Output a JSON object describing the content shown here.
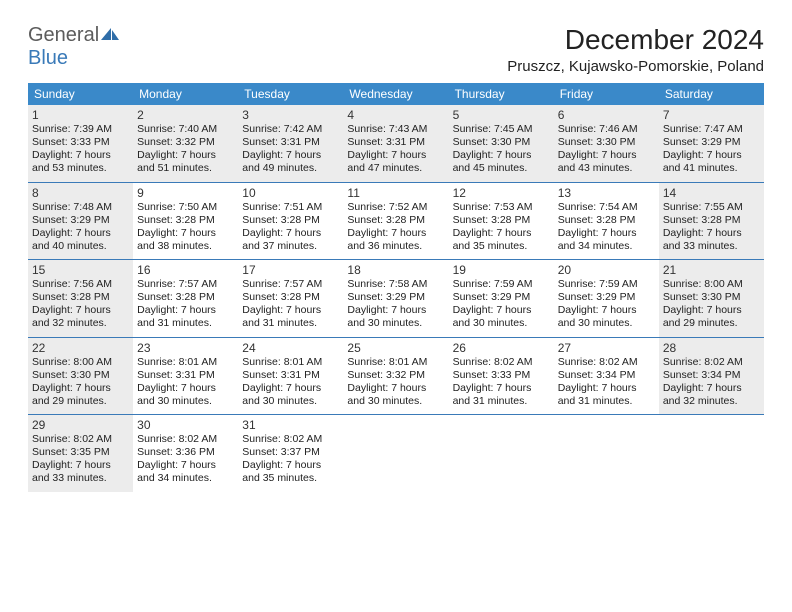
{
  "logo": {
    "text1": "General",
    "text2": "Blue"
  },
  "title": "December 2024",
  "location": "Pruszcz, Kujawsko-Pomorskie, Poland",
  "header_bg": "#3a89c9",
  "border_color": "#3a7ab8",
  "shade_color": "#ececec",
  "weekdays": [
    "Sunday",
    "Monday",
    "Tuesday",
    "Wednesday",
    "Thursday",
    "Friday",
    "Saturday"
  ],
  "weeks": [
    [
      {
        "n": "1",
        "shaded": true,
        "sr": "Sunrise: 7:39 AM",
        "ss": "Sunset: 3:33 PM",
        "dl": "Daylight: 7 hours and 53 minutes."
      },
      {
        "n": "2",
        "shaded": true,
        "sr": "Sunrise: 7:40 AM",
        "ss": "Sunset: 3:32 PM",
        "dl": "Daylight: 7 hours and 51 minutes."
      },
      {
        "n": "3",
        "shaded": true,
        "sr": "Sunrise: 7:42 AM",
        "ss": "Sunset: 3:31 PM",
        "dl": "Daylight: 7 hours and 49 minutes."
      },
      {
        "n": "4",
        "shaded": true,
        "sr": "Sunrise: 7:43 AM",
        "ss": "Sunset: 3:31 PM",
        "dl": "Daylight: 7 hours and 47 minutes."
      },
      {
        "n": "5",
        "shaded": true,
        "sr": "Sunrise: 7:45 AM",
        "ss": "Sunset: 3:30 PM",
        "dl": "Daylight: 7 hours and 45 minutes."
      },
      {
        "n": "6",
        "shaded": true,
        "sr": "Sunrise: 7:46 AM",
        "ss": "Sunset: 3:30 PM",
        "dl": "Daylight: 7 hours and 43 minutes."
      },
      {
        "n": "7",
        "shaded": true,
        "sr": "Sunrise: 7:47 AM",
        "ss": "Sunset: 3:29 PM",
        "dl": "Daylight: 7 hours and 41 minutes."
      }
    ],
    [
      {
        "n": "8",
        "shaded": true,
        "sr": "Sunrise: 7:48 AM",
        "ss": "Sunset: 3:29 PM",
        "dl": "Daylight: 7 hours and 40 minutes."
      },
      {
        "n": "9",
        "shaded": false,
        "sr": "Sunrise: 7:50 AM",
        "ss": "Sunset: 3:28 PM",
        "dl": "Daylight: 7 hours and 38 minutes."
      },
      {
        "n": "10",
        "shaded": false,
        "sr": "Sunrise: 7:51 AM",
        "ss": "Sunset: 3:28 PM",
        "dl": "Daylight: 7 hours and 37 minutes."
      },
      {
        "n": "11",
        "shaded": false,
        "sr": "Sunrise: 7:52 AM",
        "ss": "Sunset: 3:28 PM",
        "dl": "Daylight: 7 hours and 36 minutes."
      },
      {
        "n": "12",
        "shaded": false,
        "sr": "Sunrise: 7:53 AM",
        "ss": "Sunset: 3:28 PM",
        "dl": "Daylight: 7 hours and 35 minutes."
      },
      {
        "n": "13",
        "shaded": false,
        "sr": "Sunrise: 7:54 AM",
        "ss": "Sunset: 3:28 PM",
        "dl": "Daylight: 7 hours and 34 minutes."
      },
      {
        "n": "14",
        "shaded": true,
        "sr": "Sunrise: 7:55 AM",
        "ss": "Sunset: 3:28 PM",
        "dl": "Daylight: 7 hours and 33 minutes."
      }
    ],
    [
      {
        "n": "15",
        "shaded": true,
        "sr": "Sunrise: 7:56 AM",
        "ss": "Sunset: 3:28 PM",
        "dl": "Daylight: 7 hours and 32 minutes."
      },
      {
        "n": "16",
        "shaded": false,
        "sr": "Sunrise: 7:57 AM",
        "ss": "Sunset: 3:28 PM",
        "dl": "Daylight: 7 hours and 31 minutes."
      },
      {
        "n": "17",
        "shaded": false,
        "sr": "Sunrise: 7:57 AM",
        "ss": "Sunset: 3:28 PM",
        "dl": "Daylight: 7 hours and 31 minutes."
      },
      {
        "n": "18",
        "shaded": false,
        "sr": "Sunrise: 7:58 AM",
        "ss": "Sunset: 3:29 PM",
        "dl": "Daylight: 7 hours and 30 minutes."
      },
      {
        "n": "19",
        "shaded": false,
        "sr": "Sunrise: 7:59 AM",
        "ss": "Sunset: 3:29 PM",
        "dl": "Daylight: 7 hours and 30 minutes."
      },
      {
        "n": "20",
        "shaded": false,
        "sr": "Sunrise: 7:59 AM",
        "ss": "Sunset: 3:29 PM",
        "dl": "Daylight: 7 hours and 30 minutes."
      },
      {
        "n": "21",
        "shaded": true,
        "sr": "Sunrise: 8:00 AM",
        "ss": "Sunset: 3:30 PM",
        "dl": "Daylight: 7 hours and 29 minutes."
      }
    ],
    [
      {
        "n": "22",
        "shaded": true,
        "sr": "Sunrise: 8:00 AM",
        "ss": "Sunset: 3:30 PM",
        "dl": "Daylight: 7 hours and 29 minutes."
      },
      {
        "n": "23",
        "shaded": false,
        "sr": "Sunrise: 8:01 AM",
        "ss": "Sunset: 3:31 PM",
        "dl": "Daylight: 7 hours and 30 minutes."
      },
      {
        "n": "24",
        "shaded": false,
        "sr": "Sunrise: 8:01 AM",
        "ss": "Sunset: 3:31 PM",
        "dl": "Daylight: 7 hours and 30 minutes."
      },
      {
        "n": "25",
        "shaded": false,
        "sr": "Sunrise: 8:01 AM",
        "ss": "Sunset: 3:32 PM",
        "dl": "Daylight: 7 hours and 30 minutes."
      },
      {
        "n": "26",
        "shaded": false,
        "sr": "Sunrise: 8:02 AM",
        "ss": "Sunset: 3:33 PM",
        "dl": "Daylight: 7 hours and 31 minutes."
      },
      {
        "n": "27",
        "shaded": false,
        "sr": "Sunrise: 8:02 AM",
        "ss": "Sunset: 3:34 PM",
        "dl": "Daylight: 7 hours and 31 minutes."
      },
      {
        "n": "28",
        "shaded": true,
        "sr": "Sunrise: 8:02 AM",
        "ss": "Sunset: 3:34 PM",
        "dl": "Daylight: 7 hours and 32 minutes."
      }
    ],
    [
      {
        "n": "29",
        "shaded": true,
        "sr": "Sunrise: 8:02 AM",
        "ss": "Sunset: 3:35 PM",
        "dl": "Daylight: 7 hours and 33 minutes."
      },
      {
        "n": "30",
        "shaded": false,
        "sr": "Sunrise: 8:02 AM",
        "ss": "Sunset: 3:36 PM",
        "dl": "Daylight: 7 hours and 34 minutes."
      },
      {
        "n": "31",
        "shaded": false,
        "sr": "Sunrise: 8:02 AM",
        "ss": "Sunset: 3:37 PM",
        "dl": "Daylight: 7 hours and 35 minutes."
      },
      {
        "n": "",
        "shaded": false
      },
      {
        "n": "",
        "shaded": false
      },
      {
        "n": "",
        "shaded": false
      },
      {
        "n": "",
        "shaded": false
      }
    ]
  ]
}
